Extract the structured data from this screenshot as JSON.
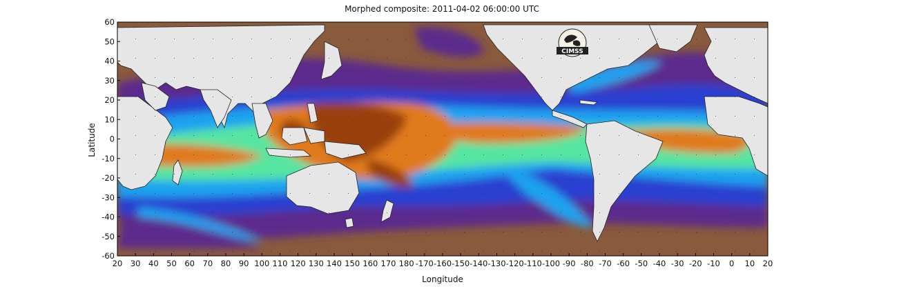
{
  "title": "Morphed composite: 2011-04-02 06:00:00 UTC",
  "axes": {
    "xlabel": "Longitude",
    "ylabel": "Latitude",
    "x_ticks": [
      "20",
      "30",
      "40",
      "50",
      "60",
      "70",
      "80",
      "90",
      "100",
      "110",
      "120",
      "130",
      "140",
      "150",
      "160",
      "170",
      "180",
      "-170",
      "-160",
      "-150",
      "-140",
      "-130",
      "-120",
      "-110",
      "-100",
      "-90",
      "-80",
      "-70",
      "-60",
      "-50",
      "-40",
      "-30",
      "-20",
      "-10",
      "0",
      "10",
      "20"
    ],
    "y_ticks": [
      "60",
      "50",
      "40",
      "30",
      "20",
      "10",
      "0",
      "-10",
      "-20",
      "-30",
      "-40",
      "-50",
      "-60"
    ]
  },
  "logo": {
    "text": "CIMSS"
  },
  "map": {
    "grid": true,
    "land_color": "#e6e6e6",
    "palette": {
      "dry": "#8a5a3c",
      "low": "#5b2a8c",
      "mid_low": "#2a3fd0",
      "mid": "#1fa3f0",
      "mid_high": "#57e5a0",
      "high": "#e07a1c",
      "very_high": "#9a3f0c"
    }
  }
}
